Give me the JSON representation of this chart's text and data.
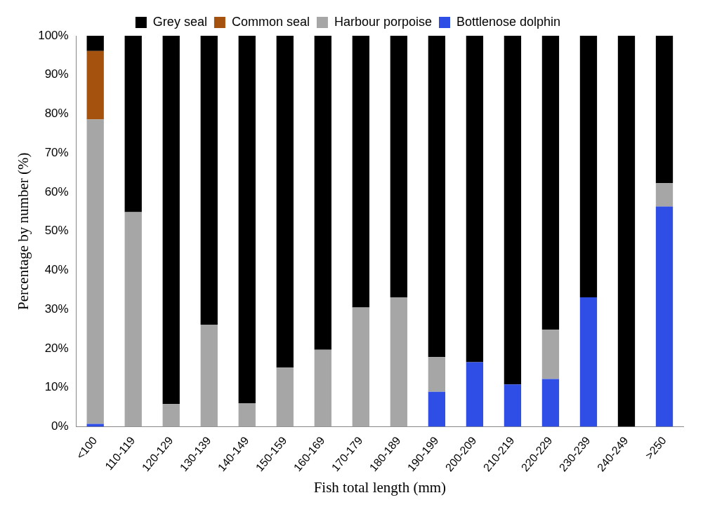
{
  "chart_data": {
    "type": "bar",
    "stacked": true,
    "xlabel": "Fish total length (mm)",
    "ylabel": "Percentage by number (%)",
    "categories": [
      "<100",
      "110-119",
      "120-129",
      "130-139",
      "140-149",
      "150-159",
      "160-169",
      "170-179",
      "180-189",
      "190-199",
      "200-209",
      "210-219",
      "220-229",
      "230-239",
      "240-249",
      ">250"
    ],
    "series": [
      {
        "name": "Bottlenose dolphin",
        "color": "#2f4ee6",
        "values": [
          0.7,
          0,
          0,
          0,
          0,
          0,
          0,
          0,
          0,
          8.9,
          16.5,
          10.8,
          12.2,
          33.1,
          0,
          56.3
        ]
      },
      {
        "name": "Harbour porpoise",
        "color": "#a6a6a6",
        "values": [
          77.9,
          54.9,
          5.8,
          26.1,
          6,
          15.1,
          19.7,
          30.5,
          33.1,
          8.9,
          0,
          0,
          12.6,
          0,
          0,
          6
        ]
      },
      {
        "name": "Common seal",
        "color": "#a5520f",
        "values": [
          17.5,
          0,
          0,
          0,
          0,
          0,
          0,
          0,
          0,
          0,
          0,
          0,
          0,
          0,
          0,
          0
        ]
      },
      {
        "name": "Grey seal",
        "color": "#000000",
        "values": [
          3.9,
          45.1,
          94.2,
          73.9,
          94,
          84.9,
          80.3,
          69.5,
          66.9,
          82.2,
          83.5,
          89.2,
          75.2,
          66.9,
          100,
          37.7
        ]
      }
    ],
    "ylim": [
      0,
      100
    ],
    "yticks": [
      {
        "value": 0,
        "label": "0%"
      },
      {
        "value": 10,
        "label": "10%"
      },
      {
        "value": 20,
        "label": "20%"
      },
      {
        "value": 30,
        "label": "30%"
      },
      {
        "value": 40,
        "label": "40%"
      },
      {
        "value": 50,
        "label": "50%"
      },
      {
        "value": 60,
        "label": "60%"
      },
      {
        "value": 70,
        "label": "70%"
      },
      {
        "value": 80,
        "label": "80%"
      },
      {
        "value": 90,
        "label": "90%"
      },
      {
        "value": 100,
        "label": "100%"
      }
    ],
    "grid": false,
    "legend": "top"
  }
}
